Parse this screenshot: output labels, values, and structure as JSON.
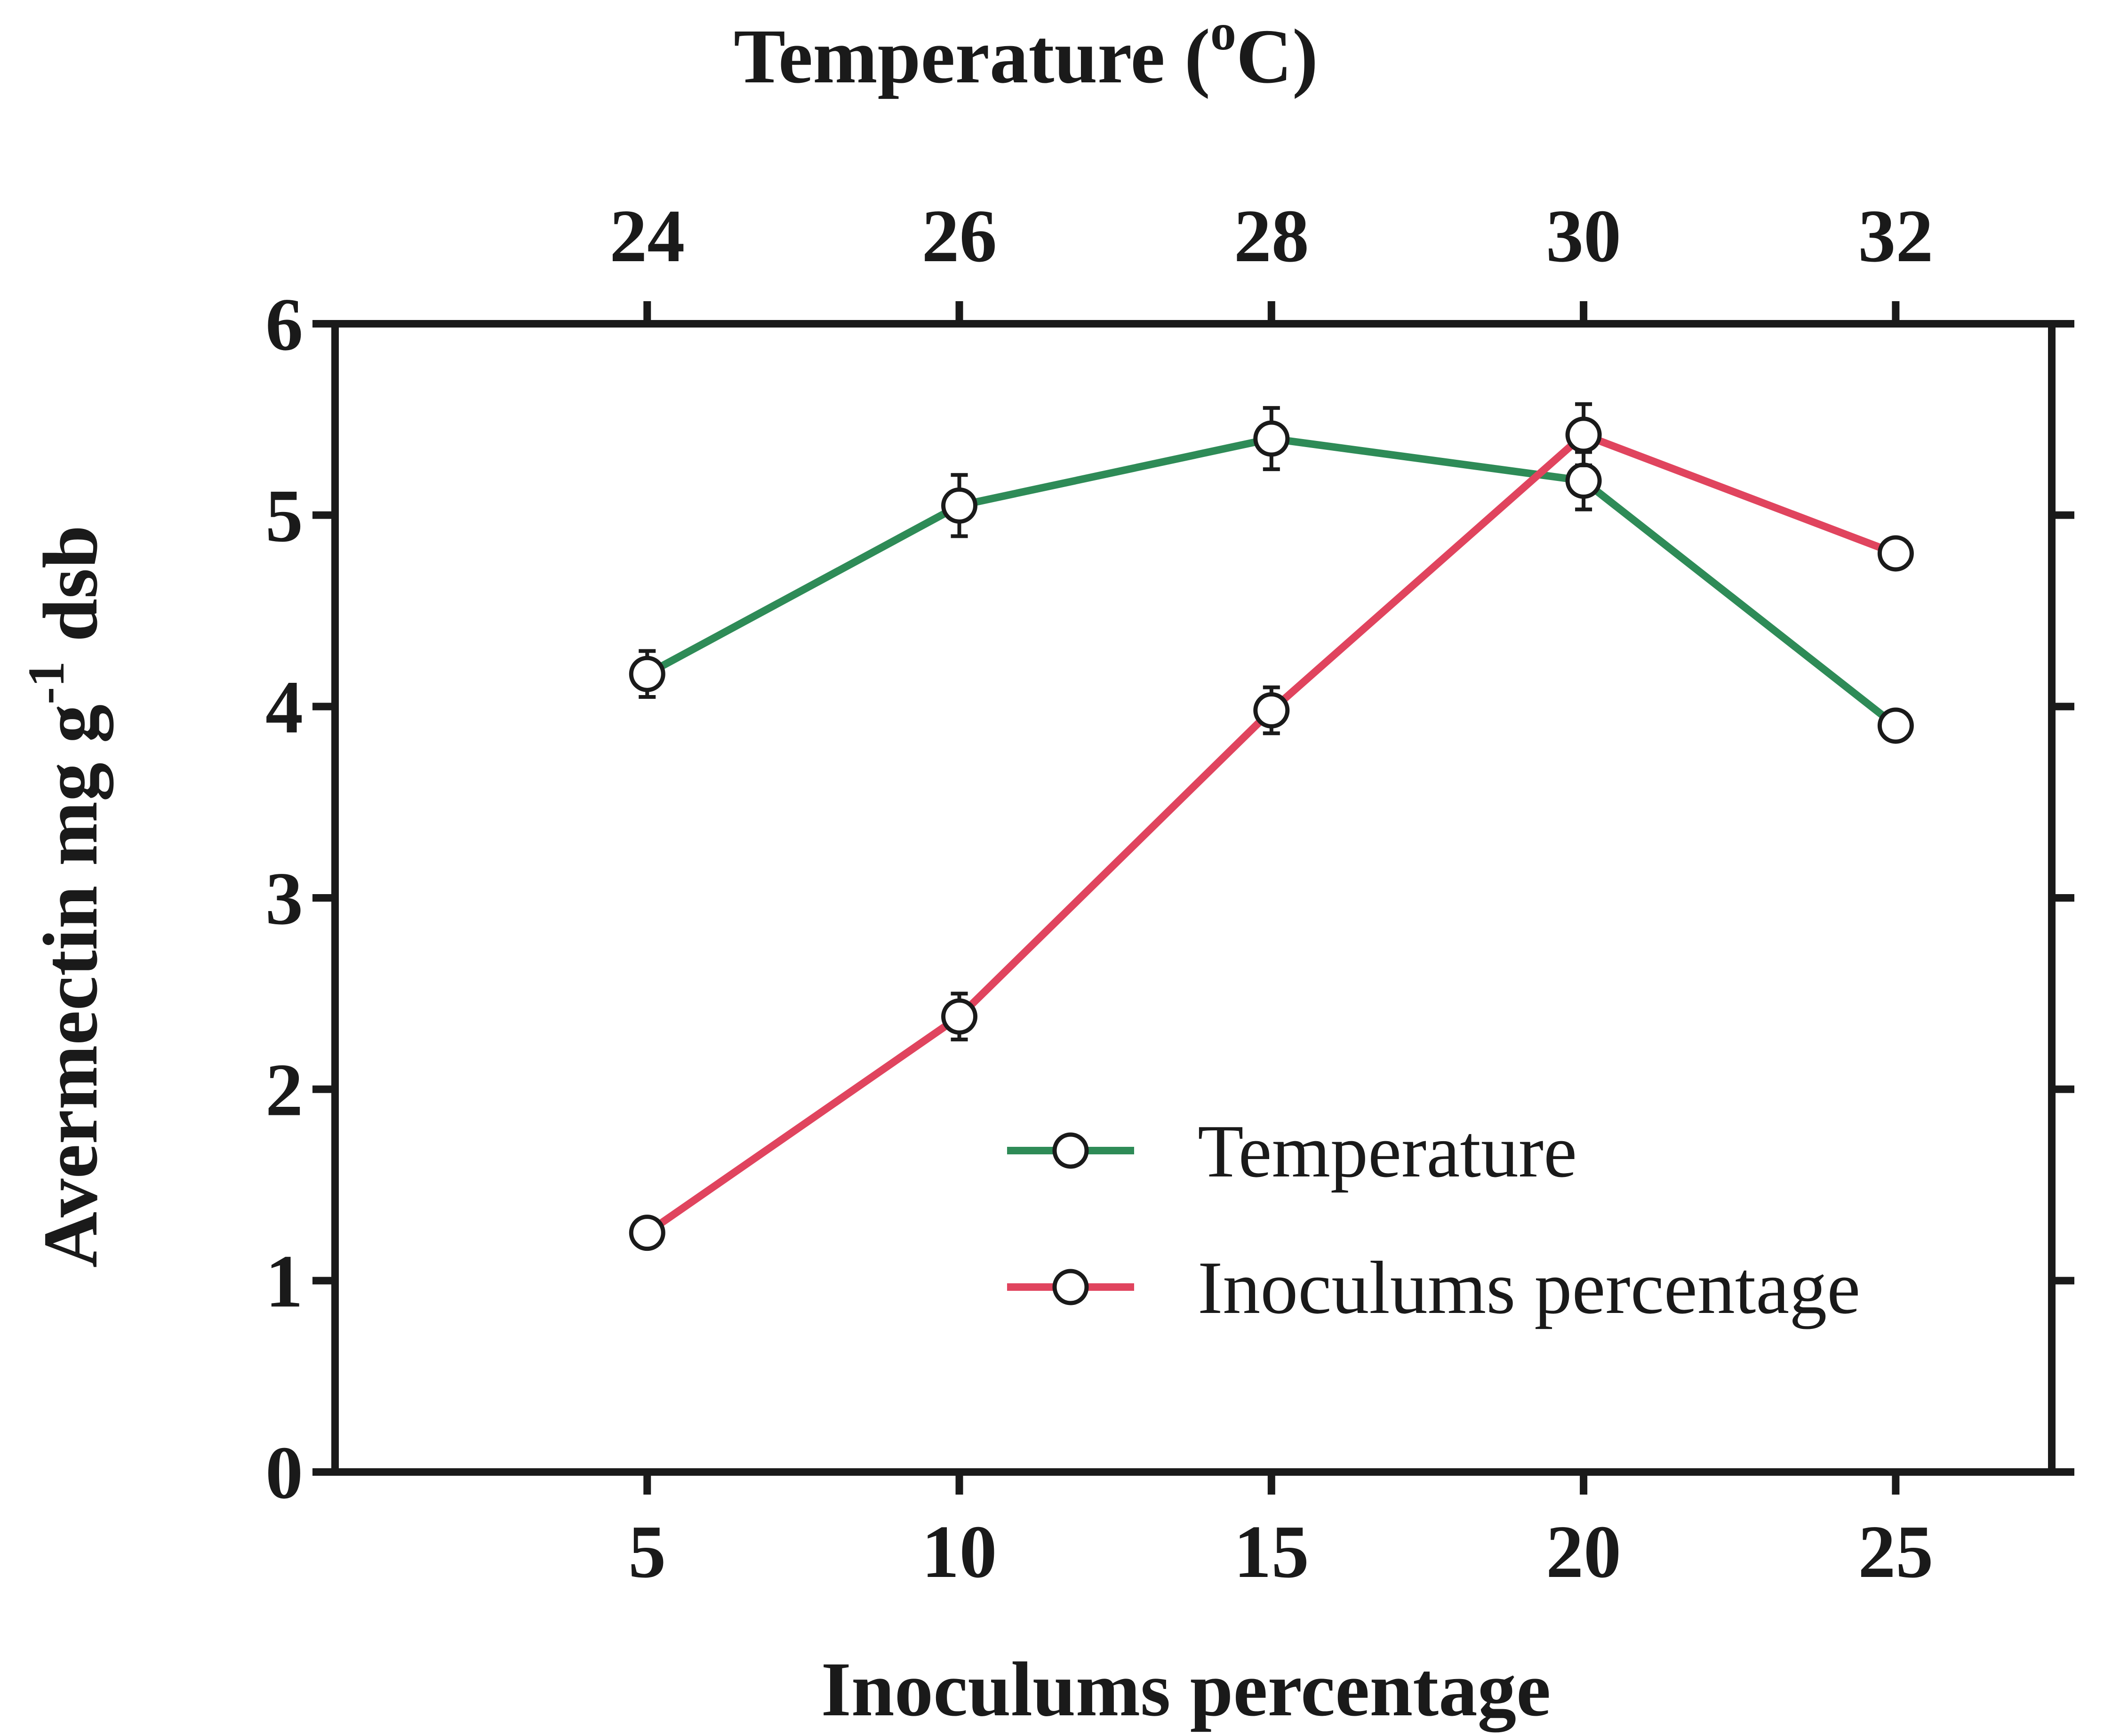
{
  "chart_data": {
    "type": "line",
    "xlabel": "Inoculums percentage",
    "top_xlabel": "Temperature (°C)",
    "top_xlabel_parts": {
      "main": "Temperature (",
      "sup": "o",
      "unit": "C)"
    },
    "ylabel": "Avermectin mg g⁻¹ dsb",
    "ylabel_parts": {
      "main": "Avermectin mg g",
      "sup": "-1",
      "tail": " dsb"
    },
    "ylim": [
      0,
      6
    ],
    "yticks": [
      "0",
      "1",
      "2",
      "3",
      "4",
      "5",
      "6"
    ],
    "bottom_xlim": [
      0,
      27.5
    ],
    "bottom_xticks": [
      "5",
      "10",
      "15",
      "20",
      "25"
    ],
    "top_xlim": [
      22,
      33
    ],
    "top_xticks": [
      "24",
      "26",
      "28",
      "30",
      "32"
    ],
    "legend_position": "lower-right",
    "grid": false,
    "series": [
      {
        "name": "Temperature",
        "axis": "top",
        "color": "#2e8b57",
        "x": [
          24,
          26,
          28,
          30,
          32
        ],
        "y": [
          4.17,
          5.05,
          5.4,
          5.18,
          3.9
        ],
        "error": [
          0.12,
          0.16,
          0.16,
          0.15,
          0
        ]
      },
      {
        "name": "Inoculums percentage",
        "axis": "bottom",
        "color": "#e0445e",
        "x": [
          5,
          10,
          15,
          20,
          25
        ],
        "y": [
          1.25,
          2.38,
          3.98,
          5.42,
          4.8
        ],
        "error": [
          0,
          0.12,
          0.12,
          0.16,
          0
        ]
      }
    ]
  }
}
